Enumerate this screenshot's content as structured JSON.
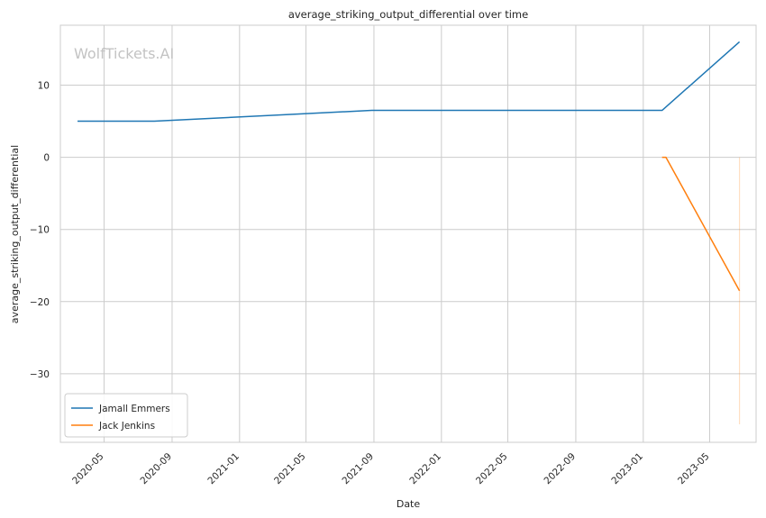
{
  "watermark": "WolfTickets.AI",
  "chart_data": {
    "type": "line",
    "title": "average_striking_output_differential over time",
    "xlabel": "Date",
    "ylabel": "average_striking_output_differential",
    "x_axis": "date",
    "xlim": [
      "2020-02-12",
      "2023-07-24"
    ],
    "ylim": [
      -39.5,
      18.3
    ],
    "x_ticks": [
      "2020-05-01",
      "2020-09-01",
      "2021-01-01",
      "2021-05-01",
      "2021-09-01",
      "2022-01-01",
      "2022-05-01",
      "2022-09-01",
      "2023-01-01",
      "2023-05-01"
    ],
    "x_tick_labels": [
      "2020-05",
      "2020-09",
      "2021-01",
      "2021-05",
      "2021-09",
      "2022-01",
      "2022-05",
      "2022-09",
      "2023-01",
      "2023-05"
    ],
    "y_ticks": [
      10,
      0,
      -10,
      -20,
      -30
    ],
    "y_tick_labels": [
      "10",
      "0",
      "−10",
      "−20",
      "−30"
    ],
    "grid": true,
    "legend_position": "lower-left",
    "series": [
      {
        "name": "Jamall Emmers",
        "color": "#1f77b4",
        "points": [
          {
            "x": "2020-03-14",
            "y": 5.0
          },
          {
            "x": "2020-07-31",
            "y": 5.0
          },
          {
            "x": "2021-08-28",
            "y": 6.5
          },
          {
            "x": "2023-02-04",
            "y": 6.5
          },
          {
            "x": "2023-06-24",
            "y": 16.0
          }
        ]
      },
      {
        "name": "Jack Jenkins",
        "color": "#ff7f0e",
        "points": [
          {
            "x": "2023-02-04",
            "y": 0.0
          },
          {
            "x": "2023-02-11",
            "y": 0.0
          },
          {
            "x": "2023-06-24",
            "y": -18.5
          }
        ]
      }
    ],
    "shaded_band": {
      "series": "Jack Jenkins",
      "x": "2023-06-24",
      "y_low": -37.0,
      "y_high": 0.0
    }
  }
}
